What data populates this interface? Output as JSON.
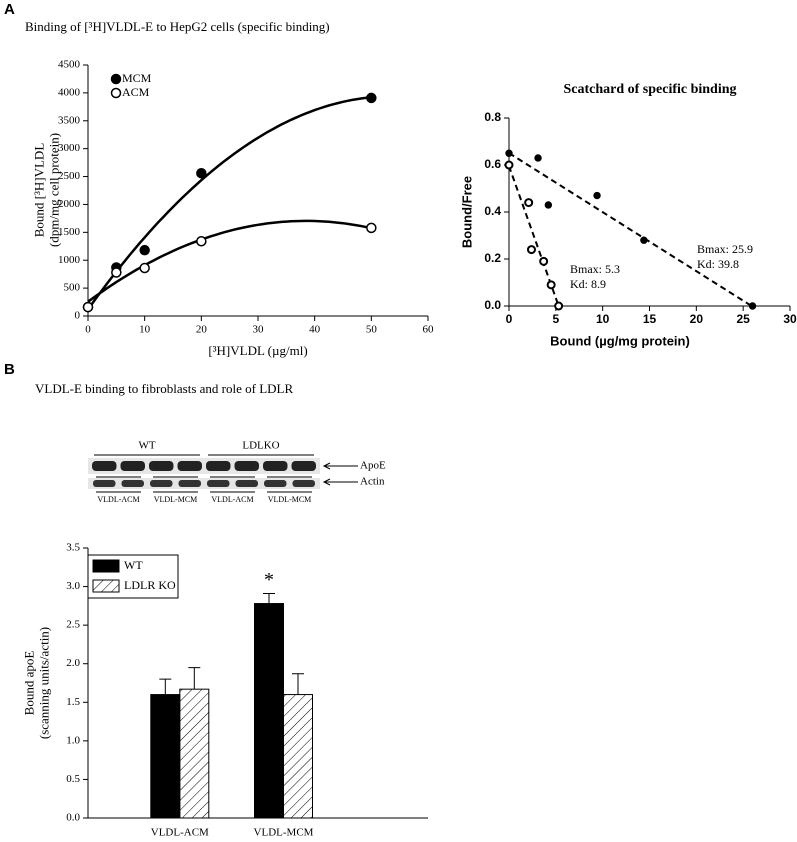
{
  "panels": [
    "A",
    "B"
  ],
  "chart_data": [
    {
      "type": "scatter",
      "title": "Binding of [³H]VLDL-E to HepG2 cells (specific binding)",
      "xlabel": "[³H]VLDL (µg/ml)",
      "ylabel": [
        "Bound [³H]VLDL",
        "(dpm/mg cell protein)"
      ],
      "xlim": [
        0,
        60
      ],
      "xticks": [
        0,
        10,
        20,
        30,
        40,
        50,
        60
      ],
      "ylim": [
        0,
        4500
      ],
      "yticks": [
        0,
        500,
        1000,
        1500,
        2000,
        2500,
        3000,
        3500,
        4000,
        4500
      ],
      "legend": "upper left",
      "series": [
        {
          "name": "MCM",
          "color": "#000000",
          "filled": true,
          "x": [
            0,
            5,
            10,
            20,
            50
          ],
          "values": [
            160,
            870,
            1180,
            2560,
            3910
          ]
        },
        {
          "name": "ACM",
          "color": "#000000",
          "filled": false,
          "x": [
            0,
            5,
            10,
            20,
            50
          ],
          "values": [
            160,
            780,
            860,
            1340,
            1580
          ]
        }
      ]
    },
    {
      "type": "scatchard",
      "title": "Scatchard of specific binding",
      "xlabel": "Bound (µg/mg protein)",
      "ylabel": "Bound/Free",
      "xlim": [
        0,
        30
      ],
      "xticks": [
        0,
        5,
        10,
        15,
        20,
        25,
        30
      ],
      "ylim": [
        0,
        0.8
      ],
      "yticks": [
        {
          "value": 0,
          "label": "0.0"
        },
        0.2,
        0.4,
        0.6,
        0.8
      ],
      "series": [
        {
          "color": "#000000",
          "filled": true,
          "x": [
            0,
            3.1,
            4.2,
            9.4,
            14.4,
            26
          ],
          "values": [
            0.65,
            0.63,
            0.43,
            0.47,
            0.28,
            0
          ],
          "bmax": 25.9,
          "kd": 39.8,
          "bmax_label": "Bmax: 25.9",
          "kd_label": "Kd: 39.8"
        },
        {
          "color": "#000000",
          "filled": false,
          "x": [
            0,
            2.1,
            2.4,
            3.7,
            4.5,
            5.3
          ],
          "values": [
            0.6,
            0.44,
            0.24,
            0.19,
            0.09,
            0
          ],
          "bmax": 5.3,
          "kd": 8.9,
          "bmax_label": "Bmax: 5.3",
          "kd_label": "Kd: 8.9"
        }
      ]
    },
    {
      "type": "bar",
      "title": "VLDL-E binding to fibroblasts and role of LDLR",
      "ylabel": [
        "Bound  apoE",
        "(scanning units/actin)"
      ],
      "categories": [
        "VLDL-ACM",
        "VLDL-MCM"
      ],
      "ylim": [
        0,
        3.5
      ],
      "yticks": [
        {
          "value": 0,
          "label": "0.0"
        },
        0.5,
        {
          "value": 1,
          "label": "1.0"
        },
        1.5,
        {
          "value": 2,
          "label": "2.0"
        },
        2.5,
        {
          "value": 3,
          "label": "3.0"
        },
        3.5
      ],
      "legend": "upper left",
      "annotation": "*",
      "series": [
        {
          "name": "WT",
          "color": "#000000",
          "hatch": false,
          "values": [
            1.6,
            2.78
          ],
          "errors": [
            0.2,
            0.13
          ]
        },
        {
          "name": "LDLR KO",
          "color": "#000000",
          "hatch": true,
          "values": [
            1.67,
            1.6
          ],
          "errors": [
            0.28,
            0.27
          ]
        }
      ]
    }
  ],
  "blot": {
    "groups": [
      "WT",
      "LDLKO"
    ],
    "bands": [
      "ApoE",
      "Actin"
    ],
    "lanes": [
      "VLDL-ACM",
      "VLDL-MCM",
      "VLDL-ACM",
      "VLDL-MCM"
    ]
  }
}
